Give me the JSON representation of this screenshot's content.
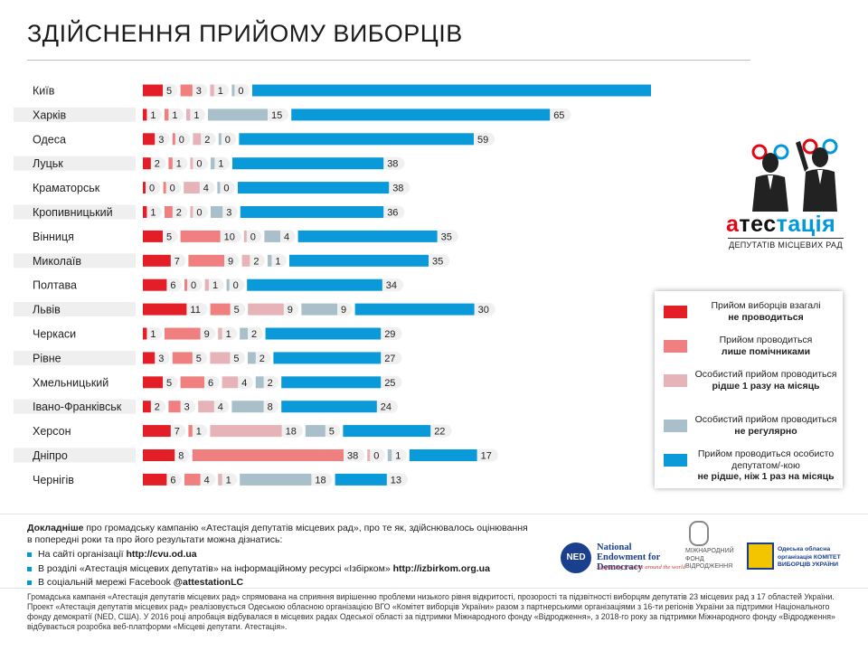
{
  "title": "ЗДІЙСНЕННЯ ПРИЙОМУ ВИБОРЦІВ",
  "colors": {
    "cat1": "#e31e26",
    "cat2": "#f07f7f",
    "cat3": "#e6b4b8",
    "cat4": "#a9bfca",
    "cat5": "#0a99d9",
    "stripe": "#efefef",
    "pill": "#f0f0f0"
  },
  "chart_data": {
    "type": "bar",
    "stacked": true,
    "orientation": "horizontal",
    "title": "ЗДІЙСНЕННЯ ПРИЙОМУ ВИБОРЦІВ",
    "categories": [
      "Київ",
      "Харків",
      "Одеса",
      "Луцьк",
      "Краматорськ",
      "Кропивницький",
      "Вінниця",
      "Миколаїв",
      "Полтава",
      "Львів",
      "Черкаси",
      "Рівне",
      "Хмельницький",
      "Івано-Франківськ",
      "Херсон",
      "Дніпро",
      "Чернігів"
    ],
    "series": [
      {
        "name": "Прийом виборців взагалі не проводиться",
        "values": [
          5,
          1,
          3,
          2,
          0,
          1,
          5,
          7,
          6,
          11,
          1,
          3,
          5,
          2,
          7,
          8,
          6
        ]
      },
      {
        "name": "Прийом проводиться лише помічниками",
        "values": [
          3,
          1,
          0,
          1,
          0,
          2,
          10,
          9,
          0,
          5,
          9,
          5,
          6,
          3,
          1,
          38,
          4
        ]
      },
      {
        "name": "Особистий прийом проводиться рідше 1 разу на місяць",
        "values": [
          1,
          1,
          2,
          0,
          4,
          0,
          0,
          2,
          1,
          9,
          1,
          5,
          4,
          4,
          18,
          0,
          1
        ]
      },
      {
        "name": "Особистий прийом проводиться не регулярно",
        "values": [
          0,
          15,
          0,
          1,
          0,
          3,
          4,
          1,
          0,
          9,
          2,
          2,
          2,
          8,
          5,
          1,
          18
        ]
      },
      {
        "name": "Прийом проводиться особисто депутатом/-кою не рідше, ніж 1 раз на місяць",
        "values": [
          111,
          65,
          59,
          38,
          38,
          36,
          35,
          35,
          34,
          30,
          29,
          27,
          25,
          24,
          22,
          17,
          13
        ]
      }
    ]
  },
  "legend": [
    {
      "text": "Прийом виборців взагалі",
      "bold": "не проводиться"
    },
    {
      "text": "Прийом проводиться",
      "bold": "лише помічниками"
    },
    {
      "text": "Особистий прийом проводиться",
      "bold": "рідше 1 разу на місяць"
    },
    {
      "text": "Особистий прийом проводиться",
      "bold": "не регулярно"
    },
    {
      "text": "Прийом проводиться особисто депутатом/-кою",
      "bold": "не рідше, ніж 1 раз на місяць"
    }
  ],
  "logo": {
    "word_part1": "а",
    "word_part2": "тес",
    "word_part3": "тація",
    "subtitle": "ДЕПУТАТІВ МІСЦЕВИХ РАД"
  },
  "more": {
    "bold": "Докладніше",
    "text": " про громадську кампанію «Атестація депутатів місцевих рад», про те як, здійснювалось оцінювання в попередні роки та про його результати можна дізнатись:"
  },
  "bullets": [
    {
      "text": "На сайті організації ",
      "link": "http://cvu.od.ua"
    },
    {
      "text": "В розділі «Атестація місцевих депутатів» на інформаційному ресурсі «Ізбірком» ",
      "link": "http://izbirkom.org.ua"
    },
    {
      "text": "В соціальній мережі Facebook ",
      "link": "@attestationLC"
    }
  ],
  "fine_print": "Громадська кампанія «Атестація депутатів місцевих рад» спрямована на сприяння вирішенню проблеми низького рівня відкритості, прозорості та підзвітності виборцям депутатів 23 місцевих рад з 17 областей України. Проект «Атестація депутатів місцевих рад» реалізовується Одеською обласною організацією ВГО «Комітет виборців України» разом з партнерськими організаціями з 16-ти регіонів України за підтримки Національного фонду демократії (NED, США). У 2016 році апробація відбувалася в місцевих радах Одеської області за підтримки Міжнародного фонду «Відродження», з 2018-го року за підтримки Міжнародного фонду «Відродження» відбувається розробка веб-платформи «Місцеві депутати. Атестація».",
  "partners": {
    "ned_abbr": "NED",
    "ned_name": "National Endowment for Democracy",
    "ned_tagline": "Supporting freedom around the world",
    "irf": "МІЖНАРОДНИЙ ФОНД ВІДРОДЖЕННЯ",
    "cvu": "Одеська обласна організація КОМІТЕТ ВИБОРЦІВ УКРАЇНИ"
  }
}
